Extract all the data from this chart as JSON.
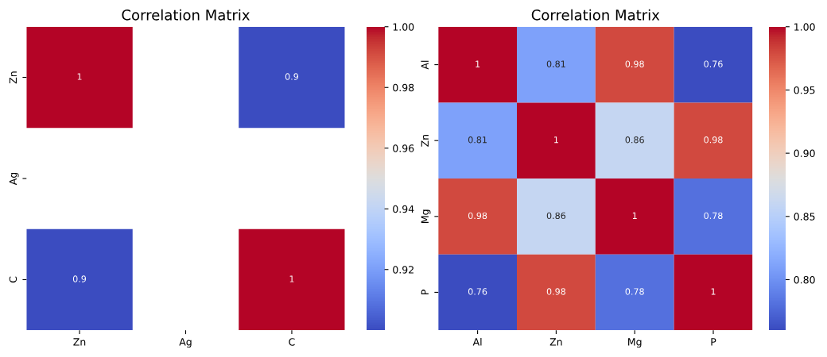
{
  "chart_data": [
    {
      "type": "heatmap",
      "title": "Correlation Matrix",
      "categories": [
        "Zn",
        "Ag",
        "C"
      ],
      "y_categories": [
        "Zn",
        "Ag",
        "C"
      ],
      "cells": [
        [
          1,
          null,
          0.9
        ],
        [
          null,
          null,
          null
        ],
        [
          0.9,
          null,
          1
        ]
      ],
      "cell_labels": [
        [
          "1",
          null,
          "0.9"
        ],
        [
          null,
          null,
          null
        ],
        [
          "0.9",
          null,
          "1"
        ]
      ],
      "clim": [
        0.9,
        1.0
      ],
      "cticks": [
        {
          "value": 0.92,
          "label": "0.92"
        },
        {
          "value": 0.94,
          "label": "0.94"
        },
        {
          "value": 0.96,
          "label": "0.96"
        },
        {
          "value": 0.98,
          "label": "0.98"
        },
        {
          "value": 1.0,
          "label": "1.00"
        }
      ]
    },
    {
      "type": "heatmap",
      "title": "Correlation Matrix",
      "categories": [
        "Al",
        "Zn",
        "Mg",
        "P"
      ],
      "y_categories": [
        "Al",
        "Zn",
        "Mg",
        "P"
      ],
      "cells": [
        [
          1,
          0.81,
          0.98,
          0.76
        ],
        [
          0.81,
          1,
          0.86,
          0.98
        ],
        [
          0.98,
          0.86,
          1,
          0.78
        ],
        [
          0.76,
          0.98,
          0.78,
          1
        ]
      ],
      "cell_labels": [
        [
          "1",
          "0.81",
          "0.98",
          "0.76"
        ],
        [
          "0.81",
          "1",
          "0.86",
          "0.98"
        ],
        [
          "0.98",
          "0.86",
          "1",
          "0.78"
        ],
        [
          "0.76",
          "0.98",
          "0.78",
          "1"
        ]
      ],
      "clim": [
        0.76,
        1.0
      ],
      "cticks": [
        {
          "value": 0.8,
          "label": "0.80"
        },
        {
          "value": 0.85,
          "label": "0.85"
        },
        {
          "value": 0.9,
          "label": "0.90"
        },
        {
          "value": 0.95,
          "label": "0.95"
        },
        {
          "value": 1.0,
          "label": "1.00"
        }
      ]
    }
  ]
}
